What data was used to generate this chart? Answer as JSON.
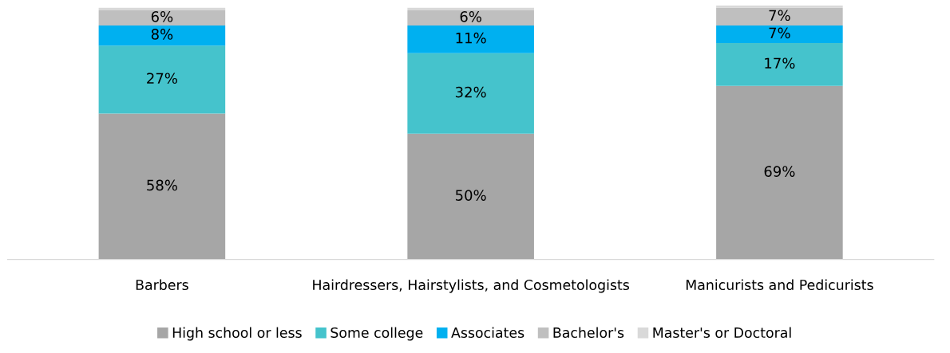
{
  "chart_data": {
    "type": "bar",
    "stacked": true,
    "legend": "bottom",
    "categories": [
      "Barbers",
      "Hairdressers, Hairstylists, and Cosmetologists",
      "Manicurists and Pedicurists"
    ],
    "series": [
      {
        "name": "High school or less",
        "color": "#a6a6a6",
        "values": [
          58,
          50,
          69
        ],
        "value_labels": [
          "58%",
          "50%",
          "69%"
        ]
      },
      {
        "name": "Some college",
        "color": "#45c3cc",
        "values": [
          27,
          32,
          17
        ],
        "value_labels": [
          "27%",
          "32%",
          "17%"
        ]
      },
      {
        "name": "Associates",
        "color": "#00b0f0",
        "values": [
          8,
          11,
          7
        ],
        "value_labels": [
          "8%",
          "11%",
          "7%"
        ]
      },
      {
        "name": "Bachelor's",
        "color": "#bfbfbf",
        "values": [
          6,
          6,
          7
        ],
        "value_labels": [
          "6%",
          "6%",
          "7%"
        ]
      },
      {
        "name": "Master's or Doctoral",
        "color": "#d9d9d9",
        "values": [
          1,
          1,
          1
        ],
        "value_labels": [
          null,
          null,
          null
        ]
      }
    ]
  }
}
